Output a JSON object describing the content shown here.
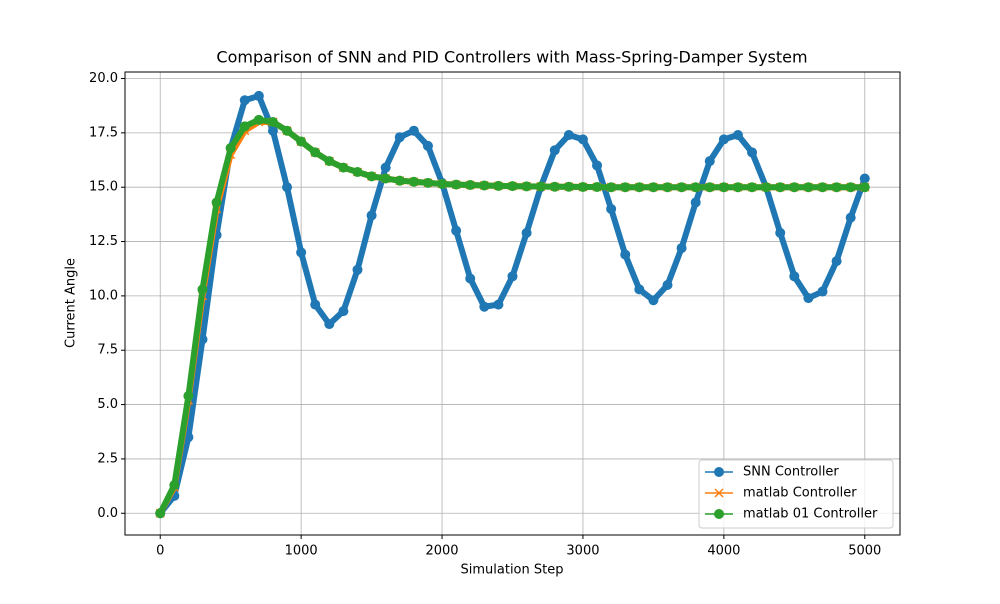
{
  "chart_data": {
    "type": "line",
    "title": "Comparison of SNN and PID Controllers with Mass-Spring-Damper System",
    "x_label": "Simulation Step",
    "y_label": "Current Angle",
    "x": [
      0,
      100,
      200,
      300,
      400,
      500,
      600,
      700,
      800,
      900,
      1000,
      1100,
      1200,
      1300,
      1400,
      1500,
      1600,
      1700,
      1800,
      1900,
      2000,
      2100,
      2200,
      2300,
      2400,
      2500,
      2600,
      2700,
      2800,
      2900,
      3000,
      3100,
      3200,
      3300,
      3400,
      3500,
      3600,
      3700,
      3800,
      3900,
      4000,
      4100,
      4200,
      4300,
      4400,
      4500,
      4600,
      4700,
      4800,
      4900,
      5000
    ],
    "series": [
      {
        "name": "SNN Controller",
        "color": "#1f77b4",
        "marker": "o",
        "values": [
          0,
          0.8,
          3.5,
          8.0,
          12.8,
          16.8,
          19.0,
          19.2,
          17.6,
          15.0,
          12.0,
          9.6,
          8.7,
          9.3,
          11.2,
          13.7,
          15.9,
          17.3,
          17.6,
          16.9,
          15.2,
          13.0,
          10.8,
          9.5,
          9.6,
          10.9,
          12.9,
          15.0,
          16.7,
          17.4,
          17.2,
          16.0,
          14.0,
          11.9,
          10.3,
          9.8,
          10.5,
          12.2,
          14.3,
          16.2,
          17.2,
          17.4,
          16.6,
          15.0,
          12.9,
          10.9,
          9.9,
          10.2,
          11.6,
          13.6,
          15.4
        ]
      },
      {
        "name": "matlab Controller",
        "color": "#ff7f0e",
        "marker": "x",
        "values": [
          0,
          1.2,
          5.2,
          10.0,
          14.0,
          16.5,
          17.6,
          18.0,
          18.0,
          17.6,
          17.1,
          16.6,
          16.2,
          15.9,
          15.7,
          15.5,
          15.4,
          15.3,
          15.25,
          15.2,
          15.15,
          15.12,
          15.1,
          15.08,
          15.06,
          15.05,
          15.04,
          15.03,
          15.02,
          15.02,
          15.01,
          15.01,
          15.0,
          15.0,
          15.0,
          15.0,
          15.0,
          15.0,
          15.0,
          15.0,
          15.0,
          15.0,
          15.0,
          15.0,
          15.0,
          15.0,
          15.0,
          15.0,
          15.0,
          15.0,
          15.0
        ]
      },
      {
        "name": "matlab 01 Controller",
        "color": "#2ca02c",
        "marker": "o",
        "values": [
          0,
          1.3,
          5.4,
          10.3,
          14.3,
          16.8,
          17.8,
          18.1,
          18.0,
          17.6,
          17.1,
          16.6,
          16.2,
          15.9,
          15.7,
          15.5,
          15.4,
          15.3,
          15.25,
          15.2,
          15.15,
          15.12,
          15.1,
          15.08,
          15.06,
          15.05,
          15.04,
          15.03,
          15.02,
          15.02,
          15.01,
          15.01,
          15.0,
          15.0,
          15.0,
          15.0,
          15.0,
          15.0,
          15.0,
          15.0,
          15.0,
          15.0,
          15.0,
          15.0,
          15.0,
          15.0,
          15.0,
          15.0,
          15.0,
          15.0,
          15.0
        ]
      }
    ],
    "xlim": [
      -250,
      5250
    ],
    "ylim": [
      -1.0,
      20.3
    ],
    "xticks": [
      0,
      1000,
      2000,
      3000,
      4000,
      5000
    ],
    "yticks": [
      {
        "value": 0,
        "label": "0.0"
      },
      2.5,
      {
        "value": 5,
        "label": "5.0"
      },
      7.5,
      {
        "value": 10,
        "label": "10.0"
      },
      12.5,
      {
        "value": 15,
        "label": "15.0"
      },
      17.5,
      {
        "value": 20,
        "label": "20.0"
      }
    ],
    "grid": true,
    "legend": "lower right"
  }
}
